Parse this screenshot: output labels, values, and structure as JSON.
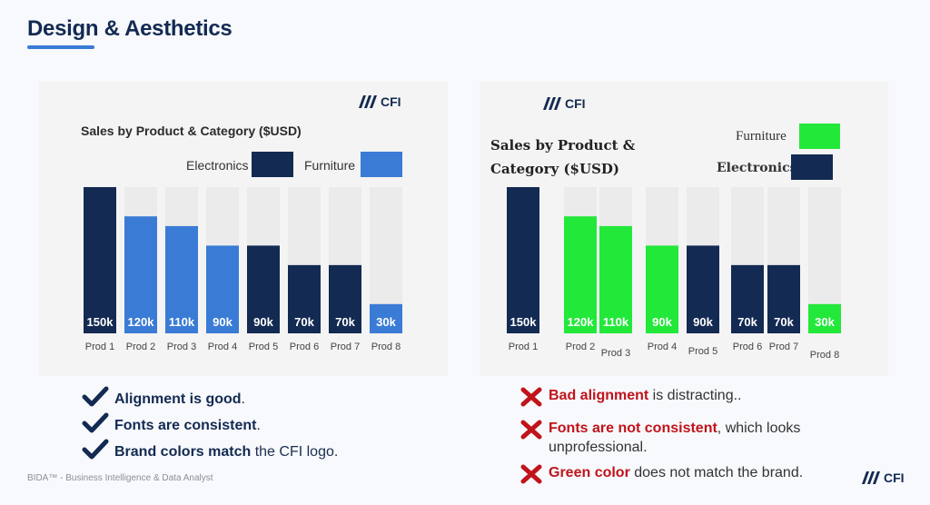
{
  "page": {
    "title": "Design & Aesthetics",
    "footer": "BIDA™ - Business Intelligence & Data Analyst",
    "logo_text": "CFI"
  },
  "colors": {
    "navy": "#132a52",
    "blue": "#3a7bd5",
    "green": "#22e83a",
    "track": "#ebebeb",
    "bad_red": "#c0141b"
  },
  "good_chart": {
    "logo_text": "CFI",
    "legend": [
      {
        "label": "Electronics",
        "color": "#132a52"
      },
      {
        "label": "Furniture",
        "color": "#3a7bd5"
      }
    ]
  },
  "bad_chart": {
    "logo_text": "CFI",
    "title_line1": "Sales by Product &",
    "title_line2": "Category ($USD)",
    "legend": [
      {
        "label": "Furniture",
        "color": "#22e83a"
      },
      {
        "label": "Electronics",
        "color": "#132a52"
      }
    ]
  },
  "chart_data": [
    {
      "type": "bar",
      "title": "Sales by Product & Category ($USD)",
      "categories": [
        "Prod 1",
        "Prod 2",
        "Prod 3",
        "Prod 4",
        "Prod 5",
        "Prod 6",
        "Prod 7",
        "Prod 8"
      ],
      "values": [
        150,
        120,
        110,
        90,
        90,
        70,
        70,
        30
      ],
      "data_labels": [
        "150k",
        "120k",
        "110k",
        "90k",
        "90k",
        "70k",
        "70k",
        "30k"
      ],
      "category_group": [
        "Electronics",
        "Furniture",
        "Furniture",
        "Furniture",
        "Electronics",
        "Electronics",
        "Electronics",
        "Furniture"
      ],
      "ylim": [
        0,
        150
      ],
      "legend_position": "top-right"
    },
    {
      "type": "bar",
      "title": "Sales by Product & Category ($USD)",
      "categories": [
        "Prod 1",
        "Prod 2",
        "Prod 3",
        "Prod 4",
        "Prod 5",
        "Prod 6",
        "Prod 7",
        "Prod 8"
      ],
      "values": [
        150,
        120,
        110,
        90,
        90,
        70,
        70,
        30
      ],
      "data_labels": [
        "150k",
        "120k",
        "110k",
        "90k",
        "90k",
        "70k",
        "70k",
        "30k"
      ],
      "category_group": [
        "Electronics",
        "Furniture",
        "Furniture",
        "Furniture",
        "Electronics",
        "Electronics",
        "Electronics",
        "Furniture"
      ],
      "ylim": [
        0,
        150
      ],
      "legend_position": "top-right"
    }
  ],
  "good_points": [
    {
      "bold": "Alignment is good",
      "rest": "."
    },
    {
      "bold": "Fonts are consistent",
      "rest": "."
    },
    {
      "bold": "Brand colors match",
      "rest": " the CFI logo."
    }
  ],
  "bad_points": [
    {
      "bold": "Bad alignment",
      "rest": " is distracting.."
    },
    {
      "bold": "Fonts are not consistent",
      "rest": ", which looks unprofessional."
    },
    {
      "bold": "Green color",
      "rest": " does not match the brand."
    }
  ]
}
